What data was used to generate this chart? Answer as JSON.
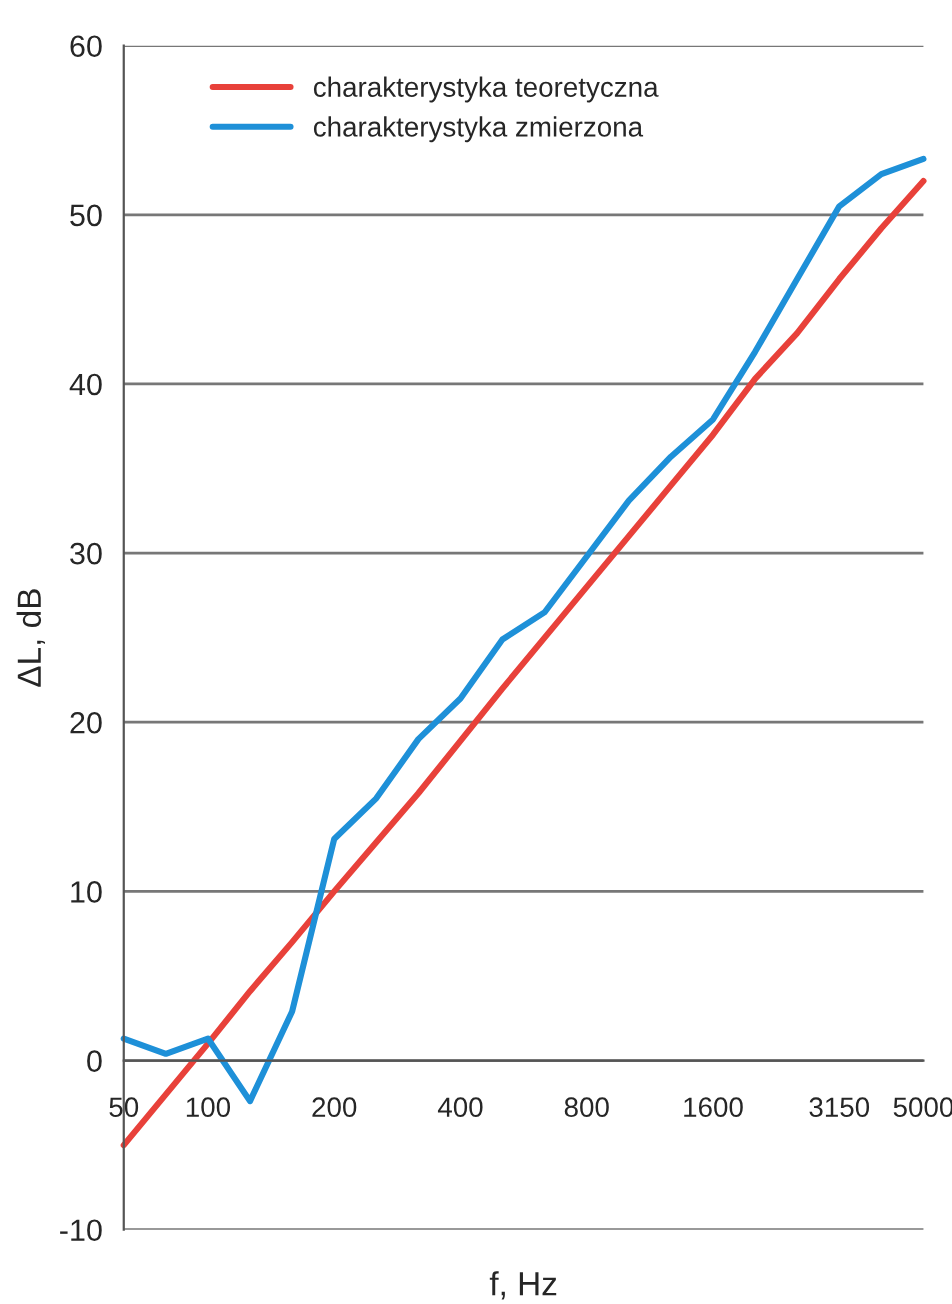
{
  "chart_data": {
    "type": "line",
    "xlabel": "f, Hz",
    "ylabel": "ΔL, dB",
    "categories": [
      "50",
      null,
      "100",
      null,
      null,
      "200",
      null,
      null,
      "400",
      null,
      null,
      "800",
      null,
      null,
      "1600",
      null,
      null,
      "3150",
      null,
      "5000"
    ],
    "series": [
      {
        "name": "charakterystyka teoretyczna",
        "color": "#e8413a",
        "values": [
          -5.0,
          -2.0,
          1.0,
          4.1,
          7.0,
          10.0,
          12.9,
          15.8,
          18.9,
          22.0,
          25.0,
          28.0,
          31.0,
          34.0,
          37.0,
          40.3,
          43.0,
          46.2,
          49.2,
          52.0
        ]
      },
      {
        "name": "charakterystyka zmierzona",
        "color": "#1e90d8",
        "values": [
          1.3,
          0.4,
          1.3,
          -2.4,
          2.9,
          13.1,
          15.5,
          19.0,
          21.4,
          24.9,
          26.5,
          29.8,
          33.1,
          35.7,
          37.9,
          41.9,
          46.2,
          50.5,
          52.4,
          53.3
        ]
      }
    ],
    "ylim": [
      -10,
      60
    ],
    "yticks": [
      -10,
      0,
      10,
      20,
      30,
      40,
      50,
      60
    ],
    "grid": "y",
    "legend": "top left",
    "marker": "none",
    "line_style": "solid"
  }
}
